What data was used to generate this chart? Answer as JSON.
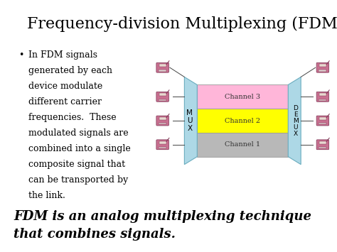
{
  "title": "Frequency-division Multiplexing (FDM)",
  "title_fontsize": 16,
  "bullet_lines": [
    "In FDM signals",
    "generated by each",
    "device modulate",
    "different carrier",
    "frequencies.  These",
    "modulated signals are",
    "combined into a single",
    "composite signal that",
    "can be transported by",
    "the link."
  ],
  "footer_line1": "FDM is an analog multiplexing technique",
  "footer_line2": "that combines signals.",
  "channel_labels": [
    "Channel 1",
    "Channel 2",
    "Channel 3"
  ],
  "channel_colors": [
    "#b8b8b8",
    "#ffff00",
    "#ffb6d9"
  ],
  "mux_color": "#add8e6",
  "demux_color": "#add8e6",
  "mux_label": "M\nU\nX",
  "demux_label": "D\nE\nM\nU\nX",
  "bg_color": "#ffffff",
  "text_color": "#000000",
  "bullet_fontsize": 9.0,
  "footer_fontsize": 13,
  "channel_label_fontsize": 7,
  "phone_color": "#c87090",
  "phone_edge": "#7a3050"
}
